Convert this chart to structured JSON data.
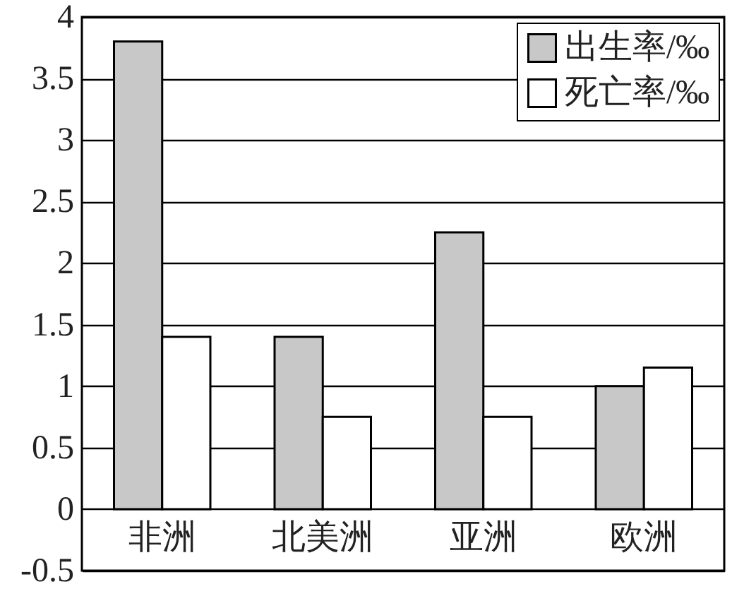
{
  "chart_data": {
    "type": "bar",
    "categories": [
      "非洲",
      "北美洲",
      "亚洲",
      "欧洲"
    ],
    "series": [
      {
        "name": "出生率/‰",
        "color": "#c8c8c8",
        "values": [
          3.8,
          1.4,
          2.25,
          1.0
        ]
      },
      {
        "name": "死亡率/‰",
        "color": "#ffffff",
        "values": [
          1.4,
          0.75,
          0.75,
          1.15
        ]
      }
    ],
    "ylim": [
      -0.5,
      4
    ],
    "yticks": [
      -0.5,
      0,
      0.5,
      1,
      1.5,
      2,
      2.5,
      3,
      3.5,
      4
    ],
    "grid": "y",
    "legend": "top right"
  }
}
